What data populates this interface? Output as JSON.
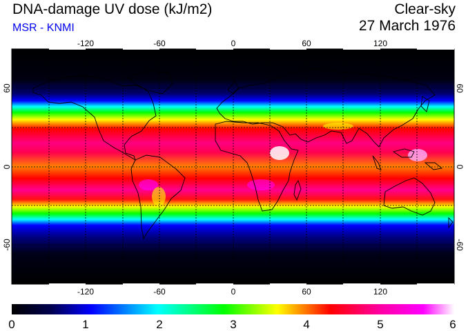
{
  "header": {
    "title": "DNA-damage UV dose (kJ/m2)",
    "source": "MSR - KNMI",
    "condition": "Clear-sky",
    "date": "27 March 1976"
  },
  "map": {
    "projection": "equirectangular",
    "lon_range": [
      -180,
      180
    ],
    "lat_range": [
      -90,
      90
    ],
    "lon_ticks": [
      "-120",
      "-60",
      "0",
      "60",
      "120"
    ],
    "lat_ticks": [
      "60",
      "0",
      "-60"
    ],
    "grid": "dashed at 30° spacing"
  },
  "colorbar": {
    "min": 0,
    "max": 6,
    "tick_labels": [
      "0",
      "1",
      "2",
      "3",
      "4",
      "5",
      "6"
    ],
    "colors": [
      "#000000",
      "#000050",
      "#0000ff",
      "#00ffff",
      "#00ff00",
      "#ffff00",
      "#ff0000",
      "#ff00a0",
      "#ff00ff",
      "#ffffff"
    ]
  }
}
